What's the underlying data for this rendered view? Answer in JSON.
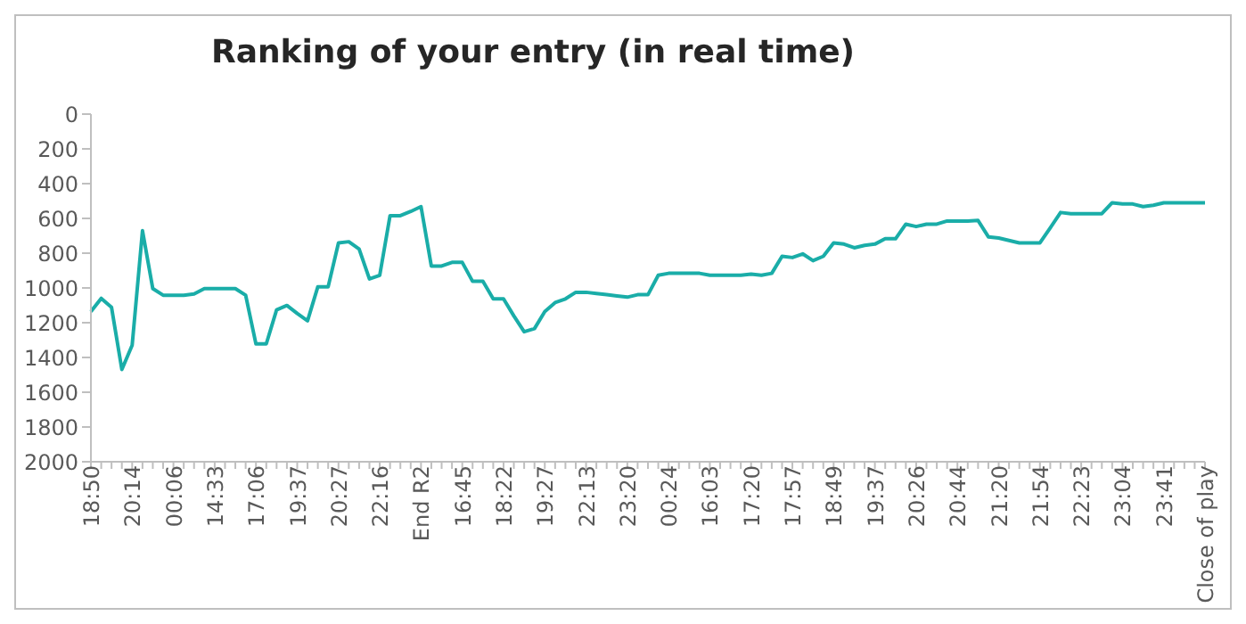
{
  "chart_data": {
    "type": "line",
    "title": "Ranking of your entry (in real time)",
    "categories": [
      "18:50",
      null,
      null,
      null,
      "20:14",
      null,
      null,
      null,
      "00:06",
      null,
      null,
      null,
      "14:33",
      null,
      null,
      null,
      "17:06",
      null,
      null,
      null,
      "19:37",
      null,
      null,
      null,
      "20:27",
      null,
      null,
      null,
      "22:16",
      null,
      null,
      null,
      "End R2",
      null,
      null,
      null,
      "16:45",
      null,
      null,
      null,
      "18:22",
      null,
      null,
      null,
      "19:27",
      null,
      null,
      null,
      "22:13",
      null,
      null,
      null,
      "23:20",
      null,
      null,
      null,
      "00:24",
      null,
      null,
      null,
      "16:03",
      null,
      null,
      null,
      "17:20",
      null,
      null,
      null,
      "17:57",
      null,
      null,
      null,
      "18:49",
      null,
      null,
      null,
      "19:37",
      null,
      null,
      null,
      "20:26",
      null,
      null,
      null,
      "20:44",
      null,
      null,
      null,
      "21:20",
      null,
      null,
      null,
      "21:54",
      null,
      null,
      null,
      "22:23",
      null,
      null,
      null,
      "23:04",
      null,
      null,
      null,
      "23:41",
      null,
      null,
      null,
      "Close of play"
    ],
    "series": [
      {
        "color": "#1aada8",
        "values": [
          1136,
          1060,
          1112,
          1469,
          1329,
          671,
          1004,
          1042,
          1042,
          1042,
          1035,
          1004,
          1004,
          1004,
          1004,
          1042,
          1322,
          1322,
          1126,
          1101,
          1147,
          1189,
          993,
          993,
          741,
          734,
          776,
          948,
          927,
          584,
          584,
          560,
          532,
          874,
          874,
          853,
          853,
          962,
          962,
          1063,
          1063,
          1161,
          1252,
          1234,
          1136,
          1084,
          1063,
          1025,
          1025,
          1032,
          1039,
          1046,
          1053,
          1039,
          1039,
          927,
          916,
          916,
          916,
          916,
          927,
          927,
          927,
          927,
          920,
          927,
          916,
          818,
          825,
          804,
          843,
          818,
          741,
          748,
          769,
          755,
          748,
          717,
          717,
          633,
          647,
          633,
          633,
          615,
          615,
          615,
          612,
          706,
          713,
          727,
          741,
          741,
          741,
          654,
          566,
          573,
          573,
          573,
          573,
          510,
          517,
          517,
          532,
          524,
          510,
          510,
          510,
          510,
          510
        ]
      }
    ],
    "ylim": [
      2000,
      0
    ],
    "yticks": [
      0,
      200,
      400,
      600,
      800,
      1000,
      1200,
      1400,
      1600,
      1800,
      2000
    ],
    "grid": false,
    "legend": false
  }
}
